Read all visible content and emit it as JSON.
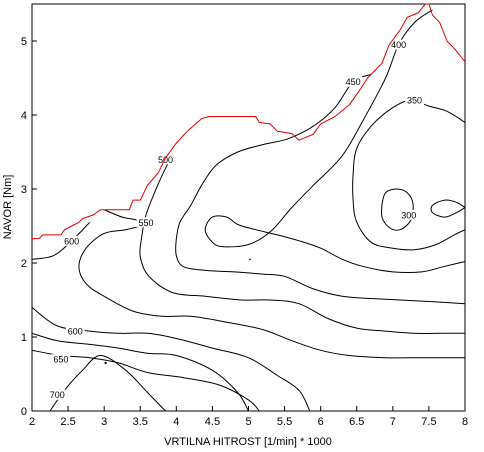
{
  "chart_data": {
    "type": "contour",
    "title": "",
    "xlabel": "VRTILNA HITROST [1/min] * 1000",
    "ylabel": "NAVOR [Nm]",
    "xlim": [
      2,
      8
    ],
    "ylim": [
      0,
      5.5
    ],
    "grid": false,
    "x_ticks": [
      "2",
      "2.5",
      "3",
      "3.5",
      "4",
      "4.5",
      "5",
      "5.5",
      "6",
      "6.5",
      "7",
      "7.5",
      "8"
    ],
    "y_ticks": [
      "0",
      "1",
      "2",
      "3",
      "4",
      "5"
    ],
    "boundary": {
      "color": "#e00000",
      "points": [
        [
          2.0,
          2.33
        ],
        [
          2.1,
          2.33
        ],
        [
          2.15,
          2.38
        ],
        [
          2.4,
          2.38
        ],
        [
          2.45,
          2.45
        ],
        [
          2.55,
          2.5
        ],
        [
          2.65,
          2.55
        ],
        [
          2.7,
          2.6
        ],
        [
          2.85,
          2.65
        ],
        [
          2.95,
          2.72
        ],
        [
          3.35,
          2.72
        ],
        [
          3.4,
          2.85
        ],
        [
          3.5,
          2.85
        ],
        [
          3.55,
          2.95
        ],
        [
          3.6,
          3.05
        ],
        [
          3.75,
          3.22
        ],
        [
          3.85,
          3.42
        ],
        [
          4.0,
          3.62
        ],
        [
          4.15,
          3.78
        ],
        [
          4.35,
          3.95
        ],
        [
          4.45,
          3.98
        ],
        [
          5.1,
          3.98
        ],
        [
          5.15,
          3.9
        ],
        [
          5.3,
          3.88
        ],
        [
          5.4,
          3.78
        ],
        [
          5.6,
          3.75
        ],
        [
          5.7,
          3.66
        ],
        [
          5.9,
          3.74
        ],
        [
          6.0,
          3.88
        ],
        [
          6.2,
          3.98
        ],
        [
          6.4,
          4.14
        ],
        [
          6.55,
          4.35
        ],
        [
          6.65,
          4.5
        ],
        [
          6.85,
          4.7
        ],
        [
          6.95,
          4.95
        ],
        [
          7.1,
          5.15
        ],
        [
          7.2,
          5.32
        ],
        [
          7.35,
          5.38
        ],
        [
          7.45,
          5.5
        ],
        [
          7.5,
          5.5
        ],
        [
          7.55,
          5.35
        ],
        [
          7.65,
          5.25
        ],
        [
          7.75,
          5.0
        ],
        [
          7.85,
          4.9
        ],
        [
          8.0,
          4.72
        ]
      ]
    },
    "contours": [
      {
        "level": "300",
        "label_at": [
          7.22,
          2.65
        ],
        "points": [
          [
            6.85,
            2.8
          ],
          [
            6.9,
            2.95
          ],
          [
            7.05,
            3.0
          ],
          [
            7.2,
            2.95
          ],
          [
            7.28,
            2.8
          ],
          [
            7.25,
            2.58
          ],
          [
            7.1,
            2.45
          ],
          [
            6.95,
            2.48
          ],
          [
            6.85,
            2.62
          ],
          [
            6.85,
            2.8
          ]
        ]
      },
      {
        "level": "300",
        "label_at": null,
        "points": [
          [
            8.0,
            2.75
          ],
          [
            7.88,
            2.82
          ],
          [
            7.72,
            2.85
          ],
          [
            7.55,
            2.78
          ],
          [
            7.55,
            2.68
          ],
          [
            7.72,
            2.62
          ],
          [
            7.88,
            2.68
          ],
          [
            8.0,
            2.75
          ]
        ]
      },
      {
        "level": "350",
        "label_at": [
          7.3,
          4.2
        ],
        "points": [
          [
            8.0,
            3.9
          ],
          [
            7.75,
            4.05
          ],
          [
            7.5,
            4.12
          ],
          [
            7.25,
            4.2
          ],
          [
            7.0,
            4.1
          ],
          [
            6.7,
            3.85
          ],
          [
            6.5,
            3.55
          ],
          [
            6.45,
            3.2
          ],
          [
            6.45,
            2.85
          ],
          [
            6.5,
            2.55
          ],
          [
            6.7,
            2.28
          ],
          [
            7.0,
            2.2
          ],
          [
            7.3,
            2.18
          ],
          [
            7.6,
            2.25
          ],
          [
            7.85,
            2.38
          ],
          [
            8.0,
            2.45
          ]
        ]
      },
      {
        "level": "400",
        "label_at": [
          7.08,
          4.95
        ],
        "points": [
          [
            7.55,
            5.42
          ],
          [
            7.3,
            5.25
          ],
          [
            7.08,
            4.95
          ],
          [
            6.9,
            4.5
          ],
          [
            6.6,
            3.95
          ],
          [
            6.3,
            3.45
          ],
          [
            5.9,
            3.05
          ],
          [
            5.6,
            2.75
          ],
          [
            5.3,
            2.42
          ],
          [
            5.0,
            2.25
          ],
          [
            4.65,
            2.22
          ],
          [
            4.5,
            2.28
          ],
          [
            4.4,
            2.45
          ],
          [
            4.5,
            2.62
          ],
          [
            4.7,
            2.62
          ],
          [
            4.85,
            2.52
          ],
          [
            5.1,
            2.45
          ],
          [
            5.4,
            2.38
          ],
          [
            5.7,
            2.3
          ],
          [
            6.0,
            2.2
          ],
          [
            6.3,
            2.05
          ],
          [
            6.6,
            1.95
          ],
          [
            7.0,
            1.88
          ],
          [
            7.4,
            1.88
          ],
          [
            7.7,
            1.95
          ],
          [
            8.0,
            2.02
          ]
        ]
      },
      {
        "level": "450",
        "label_at": [
          6.45,
          4.45
        ],
        "points": [
          [
            6.7,
            4.55
          ],
          [
            6.45,
            4.45
          ],
          [
            6.2,
            4.1
          ],
          [
            5.9,
            3.85
          ],
          [
            5.55,
            3.68
          ],
          [
            5.2,
            3.6
          ],
          [
            4.85,
            3.5
          ],
          [
            4.55,
            3.32
          ],
          [
            4.35,
            3.05
          ],
          [
            4.2,
            2.78
          ],
          [
            4.05,
            2.55
          ],
          [
            4.0,
            2.32
          ],
          [
            4.0,
            2.1
          ],
          [
            4.1,
            1.95
          ],
          [
            4.4,
            1.9
          ],
          [
            4.8,
            1.88
          ],
          [
            5.2,
            1.85
          ],
          [
            5.5,
            1.82
          ],
          [
            5.9,
            1.65
          ],
          [
            6.3,
            1.55
          ],
          [
            6.7,
            1.52
          ],
          [
            7.1,
            1.5
          ],
          [
            7.5,
            1.48
          ],
          [
            8.0,
            1.45
          ]
        ]
      },
      {
        "level": "500",
        "label_at": [
          3.85,
          3.4
        ],
        "points": [
          [
            3.95,
            3.45
          ],
          [
            3.85,
            3.28
          ],
          [
            3.72,
            3.0
          ],
          [
            3.58,
            2.65
          ],
          [
            3.52,
            2.35
          ],
          [
            3.5,
            2.08
          ],
          [
            3.62,
            1.82
          ],
          [
            3.95,
            1.6
          ],
          [
            4.4,
            1.55
          ],
          [
            4.9,
            1.5
          ],
          [
            5.3,
            1.5
          ],
          [
            5.7,
            1.45
          ],
          [
            6.1,
            1.25
          ],
          [
            6.5,
            1.12
          ],
          [
            6.9,
            1.08
          ],
          [
            7.3,
            1.05
          ],
          [
            7.7,
            1.05
          ],
          [
            8.0,
            1.05
          ]
        ]
      },
      {
        "level": "550",
        "label_at": [
          3.58,
          2.55
        ],
        "points": [
          [
            3.0,
            2.72
          ],
          [
            3.25,
            2.62
          ],
          [
            3.45,
            2.58
          ],
          [
            3.55,
            2.52
          ],
          [
            3.3,
            2.45
          ],
          [
            3.0,
            2.4
          ],
          [
            2.75,
            2.2
          ],
          [
            2.65,
            1.95
          ],
          [
            2.75,
            1.72
          ],
          [
            3.0,
            1.55
          ],
          [
            3.4,
            1.35
          ],
          [
            3.8,
            1.28
          ],
          [
            4.2,
            1.28
          ],
          [
            4.7,
            1.2
          ],
          [
            5.2,
            1.1
          ],
          [
            5.6,
            0.95
          ],
          [
            6.0,
            0.82
          ],
          [
            6.4,
            0.75
          ],
          [
            6.9,
            0.72
          ],
          [
            7.4,
            0.72
          ],
          [
            8.0,
            0.72
          ]
        ]
      },
      {
        "level": "600",
        "label_at": [
          2.55,
          2.3
        ],
        "points": [
          [
            2.8,
            2.55
          ],
          [
            2.55,
            2.3
          ],
          [
            2.3,
            2.1
          ],
          [
            2.0,
            2.05
          ]
        ]
      },
      {
        "level": "600",
        "label_at": [
          2.6,
          1.08
        ],
        "points": [
          [
            2.0,
            1.4
          ],
          [
            2.35,
            1.15
          ],
          [
            2.8,
            1.08
          ],
          [
            3.2,
            1.05
          ],
          [
            3.6,
            1.05
          ],
          [
            4.0,
            0.98
          ],
          [
            4.5,
            0.85
          ],
          [
            5.0,
            0.72
          ],
          [
            5.4,
            0.48
          ],
          [
            5.7,
            0.28
          ],
          [
            5.85,
            0.0
          ]
        ]
      },
      {
        "level": "650",
        "label_at": [
          2.4,
          0.7
        ],
        "points": [
          [
            2.0,
            0.82
          ],
          [
            2.4,
            0.75
          ],
          [
            2.8,
            0.72
          ],
          [
            3.2,
            0.65
          ],
          [
            3.6,
            0.52
          ],
          [
            4.1,
            0.45
          ],
          [
            4.6,
            0.35
          ],
          [
            5.0,
            0.15
          ],
          [
            5.15,
            0.0
          ]
        ]
      },
      {
        "level": "700",
        "label_at": [
          2.35,
          0.22
        ],
        "points": [
          [
            2.25,
            0.0
          ],
          [
            2.45,
            0.28
          ],
          [
            2.7,
            0.55
          ],
          [
            2.95,
            0.75
          ],
          [
            3.3,
            0.55
          ],
          [
            3.6,
            0.25
          ],
          [
            3.85,
            0.0
          ]
        ]
      },
      {
        "level": "550",
        "label_at": null,
        "points": [
          [
            2.0,
            1.05
          ],
          [
            2.35,
            0.95
          ],
          [
            2.8,
            0.9
          ],
          [
            3.2,
            0.85
          ],
          [
            3.6,
            0.78
          ],
          [
            4.0,
            0.75
          ],
          [
            4.5,
            0.55
          ],
          [
            4.85,
            0.25
          ],
          [
            5.0,
            0.0
          ]
        ]
      }
    ]
  }
}
